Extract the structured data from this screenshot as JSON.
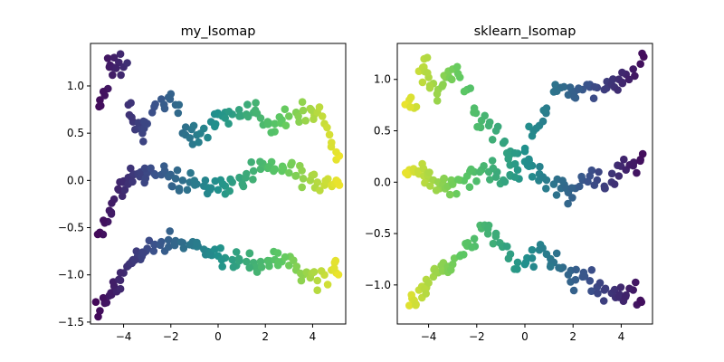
{
  "chart_data": [
    {
      "type": "scatter",
      "title": "my_Isomap",
      "xlabel": "",
      "ylabel": "",
      "xlim": [
        -5.4,
        5.4
      ],
      "ylim": [
        -1.52,
        1.45
      ],
      "xticks": [
        -4,
        -2,
        0,
        2,
        4
      ],
      "yticks": [
        -1.5,
        -1.0,
        -0.5,
        0.0,
        0.5,
        1.0
      ],
      "xtick_labels": [
        "−4",
        "−2",
        "0",
        "2",
        "4"
      ],
      "ytick_labels": [
        "−1.5",
        "−1.0",
        "−0.5",
        "0.0",
        "0.5",
        "1.0"
      ],
      "colormap": "viridis",
      "color_by": "x ascending (dark purple at left, yellow at right)",
      "colors": [
        "#440154",
        "#3b528b",
        "#21918c",
        "#5ec962",
        "#fde725"
      ],
      "grid": false,
      "legend": "none",
      "series": [
        {
          "x": [
            -5.0,
            -4.8,
            -4.6,
            -4.4,
            -4.2,
            -4.0,
            -3.8,
            -3.6,
            -3.4,
            -3.2,
            -3.0,
            -2.7,
            -2.4,
            -2.1,
            -1.8,
            -1.5,
            -1.2,
            -0.9,
            -0.6,
            -0.3,
            0.0,
            0.3,
            0.6,
            0.9,
            1.2,
            1.5,
            1.8,
            2.1,
            2.4,
            2.7,
            3.0,
            3.3,
            3.6,
            3.9,
            4.2,
            4.5,
            4.8,
            5.0
          ],
          "y": [
            -1.38,
            -1.3,
            -1.22,
            -1.12,
            -1.05,
            -0.98,
            -0.9,
            -0.84,
            -0.8,
            -0.76,
            -0.72,
            -0.68,
            -0.65,
            -0.63,
            -0.64,
            -0.66,
            -0.68,
            -0.7,
            -0.73,
            -0.76,
            -0.8,
            -0.82,
            -0.84,
            -0.85,
            -0.86,
            -0.87,
            -0.86,
            -0.85,
            -0.84,
            -0.86,
            -0.9,
            -0.95,
            -1.0,
            -1.03,
            -1.06,
            -1.0,
            -0.95,
            -0.98
          ]
        },
        {
          "x": [
            -5.0,
            -4.8,
            -4.6,
            -4.4,
            -4.2,
            -4.0,
            -3.8,
            -3.6,
            -3.4,
            -3.2,
            -3.0,
            -2.7,
            -2.4,
            -2.1,
            -1.8,
            -1.5,
            -1.2,
            -0.9,
            -0.6,
            -0.3,
            0.0,
            0.3,
            0.6,
            0.9,
            1.2,
            1.5,
            1.8,
            2.1,
            2.4,
            2.7,
            3.0,
            3.3,
            3.6,
            3.9,
            4.2,
            4.5,
            4.8,
            5.0
          ],
          "y": [
            -0.55,
            -0.45,
            -0.32,
            -0.2,
            -0.1,
            -0.02,
            0.03,
            0.06,
            0.07,
            0.08,
            0.08,
            0.07,
            0.06,
            0.04,
            0.02,
            0.0,
            -0.02,
            -0.04,
            -0.06,
            -0.08,
            -0.1,
            -0.06,
            -0.02,
            0.03,
            0.07,
            0.1,
            0.12,
            0.13,
            0.12,
            0.1,
            0.08,
            0.05,
            0.02,
            0.0,
            -0.02,
            -0.05,
            -0.05,
            0.0
          ]
        },
        {
          "x": [
            -5.0,
            -4.8,
            -4.6,
            -4.4,
            -4.2,
            -4.0,
            -3.8,
            -3.6,
            -3.4,
            -3.2,
            -3.0,
            -2.7,
            -2.4,
            -2.1,
            -1.8,
            -1.5,
            -1.2,
            -0.9,
            -0.6,
            -0.3,
            0.0,
            0.3,
            0.6,
            0.9,
            1.2,
            1.5,
            1.8,
            2.1,
            2.4,
            2.7,
            3.0,
            3.3,
            3.6,
            3.9,
            4.2,
            4.5,
            4.8,
            5.0
          ],
          "y": [
            0.85,
            0.9,
            1.2,
            1.3,
            1.25,
            1.2,
            0.8,
            0.62,
            0.55,
            0.5,
            0.6,
            0.78,
            0.86,
            0.88,
            0.8,
            0.5,
            0.45,
            0.48,
            0.55,
            0.62,
            0.7,
            0.72,
            0.7,
            0.68,
            0.7,
            0.72,
            0.66,
            0.62,
            0.6,
            0.64,
            0.68,
            0.72,
            0.74,
            0.76,
            0.72,
            0.6,
            0.4,
            0.22
          ]
        }
      ]
    },
    {
      "type": "scatter",
      "title": "sklearn_Isomap",
      "xlabel": "",
      "ylabel": "",
      "xlim": [
        -5.3,
        5.3
      ],
      "ylim": [
        -1.38,
        1.35
      ],
      "xticks": [
        -4,
        -2,
        0,
        2,
        4
      ],
      "yticks": [
        -1.0,
        -0.5,
        0.0,
        0.5,
        1.0
      ],
      "xtick_labels": [
        "−4",
        "−2",
        "0",
        "2",
        "4"
      ],
      "ytick_labels": [
        "−1.0",
        "−0.5",
        "0.0",
        "0.5",
        "1.0"
      ],
      "colormap": "viridis",
      "color_by": "x descending (yellow at left, dark purple at right)",
      "colors": [
        "#440154",
        "#3b528b",
        "#21918c",
        "#5ec962",
        "#fde725"
      ],
      "grid": false,
      "legend": "none",
      "series": [
        {
          "x": [
            -4.8,
            -4.6,
            -4.4,
            -4.2,
            -4.0,
            -3.8,
            -3.6,
            -3.4,
            -3.2,
            -3.0,
            -2.7,
            -2.4,
            -2.1,
            -1.8,
            -1.5,
            -1.2,
            -0.9,
            -0.6,
            -0.3,
            0.0,
            0.3,
            0.6,
            0.9,
            1.2,
            1.5,
            1.8,
            2.1,
            2.4,
            2.7,
            3.0,
            3.3,
            3.6,
            3.9,
            4.2,
            4.5,
            4.8
          ],
          "y": [
            -1.2,
            -1.15,
            -1.05,
            -1.02,
            -0.98,
            -0.92,
            -0.88,
            -0.84,
            -0.82,
            -0.8,
            -0.72,
            -0.62,
            -0.55,
            -0.45,
            -0.42,
            -0.5,
            -0.62,
            -0.7,
            -0.78,
            -0.8,
            -0.74,
            -0.66,
            -0.7,
            -0.78,
            -0.84,
            -0.9,
            -0.95,
            -0.92,
            -0.96,
            -1.02,
            -1.05,
            -1.08,
            -1.12,
            -1.1,
            -1.05,
            -1.15
          ]
        },
        {
          "x": [
            -4.8,
            -4.6,
            -4.4,
            -4.2,
            -4.0,
            -3.8,
            -3.6,
            -3.4,
            -3.2,
            -3.0,
            -2.7,
            -2.4,
            -2.1,
            -1.8,
            -1.5,
            -1.2,
            -0.9,
            -0.6,
            -0.3,
            0.0,
            0.3,
            0.6,
            0.9,
            1.2,
            1.5,
            1.8,
            2.1,
            2.4,
            2.7,
            3.0,
            3.3,
            3.6,
            3.9,
            4.2,
            4.5,
            4.8
          ],
          "y": [
            0.12,
            0.1,
            0.08,
            0.06,
            0.04,
            0.02,
            0.0,
            -0.02,
            -0.04,
            -0.02,
            0.02,
            0.06,
            0.1,
            0.12,
            0.1,
            0.05,
            0.02,
            0.06,
            0.12,
            0.2,
            0.16,
            0.08,
            0.02,
            -0.02,
            -0.06,
            -0.1,
            -0.06,
            0.02,
            0.06,
            0.02,
            -0.04,
            0.0,
            0.06,
            0.12,
            0.16,
            0.22
          ]
        },
        {
          "x": [
            -4.8,
            -4.6,
            -4.4,
            -4.2,
            -4.0,
            -3.8,
            -3.6,
            -3.4,
            -3.2,
            -3.0,
            -2.7,
            -2.4,
            -2.1,
            -1.8,
            -1.5,
            -1.2,
            -0.9,
            -0.6,
            -0.3,
            0.0,
            0.3,
            0.6,
            0.9,
            1.2,
            1.5,
            1.8,
            2.1,
            2.4,
            2.7,
            3.0,
            3.3,
            3.6,
            3.9,
            4.2,
            4.5,
            4.8
          ],
          "y": [
            0.8,
            0.72,
            1.08,
            1.12,
            1.02,
            0.96,
            0.9,
            0.95,
            1.05,
            1.1,
            1.02,
            0.9,
            0.72,
            0.6,
            0.55,
            0.5,
            0.38,
            0.3,
            0.28,
            0.3,
            0.45,
            0.55,
            0.72,
            0.88,
            0.92,
            0.85,
            0.82,
            0.9,
            0.95,
            0.92,
            0.9,
            0.95,
            1.0,
            1.05,
            1.1,
            1.15
          ]
        }
      ]
    }
  ]
}
